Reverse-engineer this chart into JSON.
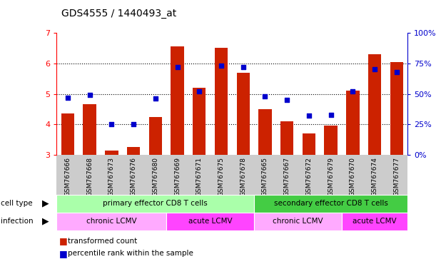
{
  "title": "GDS4555 / 1440493_at",
  "samples": [
    "GSM767666",
    "GSM767668",
    "GSM767673",
    "GSM767676",
    "GSM767680",
    "GSM767669",
    "GSM767671",
    "GSM767675",
    "GSM767678",
    "GSM767665",
    "GSM767667",
    "GSM767672",
    "GSM767679",
    "GSM767670",
    "GSM767674",
    "GSM767677"
  ],
  "transformed_count": [
    4.35,
    4.65,
    3.15,
    3.25,
    4.25,
    6.55,
    5.2,
    6.5,
    5.7,
    4.5,
    4.1,
    3.7,
    3.95,
    5.1,
    6.3,
    6.05
  ],
  "percentile_rank": [
    47,
    49,
    25,
    25,
    46,
    72,
    52,
    73,
    72,
    48,
    45,
    32,
    33,
    52,
    70,
    68
  ],
  "ylim_left": [
    3,
    7
  ],
  "ylim_right": [
    0,
    100
  ],
  "yticks_left": [
    3,
    4,
    5,
    6,
    7
  ],
  "yticks_right": [
    0,
    25,
    50,
    75,
    100
  ],
  "ytick_labels_right": [
    "0%",
    "25%",
    "50%",
    "75%",
    "100%"
  ],
  "bar_color": "#cc2200",
  "dot_color": "#0000cc",
  "groups": {
    "cell_type": [
      {
        "label": "primary effector CD8 T cells",
        "start": 0,
        "end": 9,
        "color": "#aaffaa"
      },
      {
        "label": "secondary effector CD8 T cells",
        "start": 9,
        "end": 16,
        "color": "#44cc44"
      }
    ],
    "infection": [
      {
        "label": "chronic LCMV",
        "start": 0,
        "end": 5,
        "color": "#ffaaff"
      },
      {
        "label": "acute LCMV",
        "start": 5,
        "end": 9,
        "color": "#ff44ff"
      },
      {
        "label": "chronic LCMV",
        "start": 9,
        "end": 13,
        "color": "#ffaaff"
      },
      {
        "label": "acute LCMV",
        "start": 13,
        "end": 16,
        "color": "#ff44ff"
      }
    ]
  },
  "legend_items": [
    {
      "label": "transformed count",
      "color": "#cc2200"
    },
    {
      "label": "percentile rank within the sample",
      "color": "#0000cc"
    }
  ],
  "background_color": "#ffffff",
  "grid_color": "#000000",
  "tick_bg": "#cccccc"
}
